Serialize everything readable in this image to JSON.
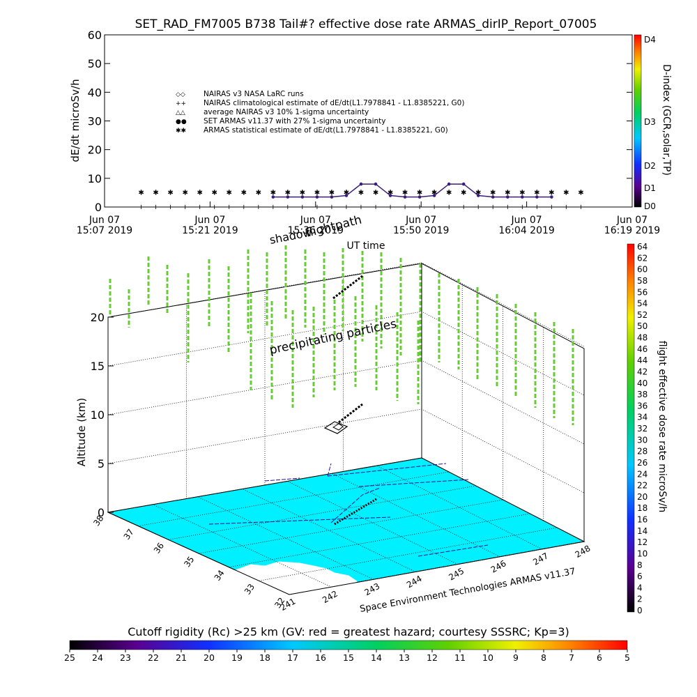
{
  "title": "SET_RAD_FM7005  B738 Tail#? effective dose rate ARMAS_dirIP_Report_07005",
  "colors": {
    "nairas_line": "#3a1e78",
    "armas": "#0a2fe0",
    "surface": "#00f0ff",
    "precip": "#66cc33",
    "coast": "#ffffff"
  },
  "top_panel": {
    "ylabel": "dE/dt microSv/h",
    "xlabel": "UT time",
    "y_ticks": [
      "0",
      "10",
      "20",
      "30",
      "40",
      "50",
      "60"
    ],
    "x_ticks": [
      {
        "l1": "Jun 07",
        "l2": "15:07 2019"
      },
      {
        "l1": "Jun 07",
        "l2": "15:21 2019"
      },
      {
        "l1": "Jun 07",
        "l2": "15:36 2019"
      },
      {
        "l1": "Jun 07",
        "l2": "15:50 2019"
      },
      {
        "l1": "Jun 07",
        "l2": "16:04 2019"
      },
      {
        "l1": "Jun 07",
        "l2": "16:19 2019"
      }
    ],
    "legend": [
      {
        "sym": "◇◇",
        "text": "NAIRAS v3 NASA LaRC runs"
      },
      {
        "sym": "++",
        "text": "NAIRAS climatological estimate of dE/dt(L1.7978841 - L1.8385221, G0)"
      },
      {
        "sym": "△△",
        "text": "average NAIRAS v3 10% 1-sigma uncertainty"
      },
      {
        "sym": "●●",
        "text": "SET ARMAS v11.37 with 27% 1-sigma uncertainty"
      },
      {
        "sym": "✱✱",
        "text": "ARMAS statistical estimate of dE/dt(L1.7978841 - L1.8385221, G0)"
      }
    ]
  },
  "dindex": {
    "label": "D-index (GCR,solar,TP)",
    "ticks": [
      "D0",
      "D1",
      "D2",
      "D3",
      "D4"
    ]
  },
  "chart_data": [
    {
      "type": "line",
      "title": "SET_RAD_FM7005  B738 Tail#? effective dose rate ARMAS_dirIP_Report_07005",
      "xlabel": "UT time",
      "ylabel": "dE/dt microSv/h",
      "xlim": [
        "15:07",
        "16:19"
      ],
      "ylim": [
        0,
        60
      ],
      "grid": false,
      "legend_position": "upper-left",
      "x": [
        "15:12",
        "15:14",
        "15:16",
        "15:18",
        "15:20",
        "15:22",
        "15:24",
        "15:26",
        "15:28",
        "15:30",
        "15:32",
        "15:34",
        "15:36",
        "15:38",
        "15:40",
        "15:42",
        "15:44",
        "15:46",
        "15:48",
        "15:50",
        "15:52",
        "15:54",
        "15:56",
        "15:58",
        "16:00",
        "16:02",
        "16:04",
        "16:06",
        "16:08",
        "16:10",
        "16:12"
      ],
      "series": [
        {
          "name": "NAIRAS climatological estimate of dE/dt(L1.7978841 - L1.8385221, G0)",
          "values": [
            0,
            0,
            0,
            0,
            0,
            0,
            0,
            0,
            0,
            0,
            0,
            0,
            0,
            0,
            0,
            0,
            0,
            0,
            0,
            0,
            0,
            0,
            0,
            0,
            0,
            0,
            0,
            0,
            0,
            0,
            0
          ]
        },
        {
          "name": "ARMAS statistical estimate of dE/dt(L1.7978841 - L1.8385221, G0)",
          "values": [
            5,
            5,
            5,
            5,
            5,
            5,
            5,
            5,
            5,
            5,
            5,
            5,
            5,
            5,
            5,
            5,
            5,
            5,
            5,
            5,
            5,
            5,
            5,
            5,
            5,
            5,
            5,
            5,
            5,
            5,
            5
          ]
        },
        {
          "name": "SET ARMAS v11.37 with 27% 1-sigma uncertainty",
          "values": [
            null,
            null,
            null,
            null,
            null,
            null,
            null,
            null,
            null,
            3.5,
            3.5,
            3.5,
            3.5,
            3.5,
            4,
            8,
            8,
            4,
            3.5,
            3.5,
            4,
            8,
            8,
            4,
            3.5,
            3.5,
            3.5,
            3.5,
            3.5,
            null,
            null
          ]
        }
      ]
    },
    {
      "type": "scatter",
      "title": "",
      "xlabel": "",
      "ylabel": "Altitude (km)",
      "zlim": [
        0,
        20
      ],
      "z_ticks": [
        0,
        5,
        10,
        15,
        20
      ],
      "lat_ticks": [
        32,
        33,
        34,
        35,
        36,
        37,
        38
      ],
      "lon_ticks": [
        241,
        242,
        243,
        244,
        245,
        246,
        247,
        248
      ],
      "series": [
        {
          "name": "precipitating particles",
          "values": []
        },
        {
          "name": "flightpath",
          "values": []
        }
      ]
    }
  ],
  "bottom_panel": {
    "annotations": {
      "shadow": "shadow",
      "flightpath": "flightpath",
      "precip": "precipitating particles"
    },
    "alt_label": "Altitude (km)",
    "alt_ticks": [
      "0",
      "5",
      "10",
      "15",
      "20"
    ],
    "lat_ticks": [
      "32",
      "33",
      "34",
      "35",
      "36",
      "37",
      "38"
    ],
    "lon_ticks": [
      "241",
      "242",
      "243",
      "244",
      "245",
      "246",
      "247",
      "248"
    ],
    "credit": "Space Environment Technologies ARMAS v11.37"
  },
  "right_colorbar": {
    "label": "flight effective dose rate microSv/h",
    "ticks": [
      "0",
      "2",
      "4",
      "6",
      "8",
      "10",
      "12",
      "14",
      "16",
      "18",
      "20",
      "22",
      "24",
      "26",
      "28",
      "30",
      "32",
      "34",
      "36",
      "38",
      "40",
      "42",
      "44",
      "46",
      "48",
      "50",
      "52",
      "54",
      "56",
      "58",
      "60",
      "62",
      "64"
    ]
  },
  "bottom_colorbar": {
    "title": "Cutoff rigidity (Rc) >25 km (GV: red = greatest hazard; courtesy SSSRC; Kp=3)",
    "ticks": [
      "25",
      "24",
      "23",
      "22",
      "21",
      "20",
      "19",
      "18",
      "17",
      "16",
      "15",
      "14",
      "13",
      "12",
      "11",
      "10",
      "9",
      "8",
      "7",
      "6",
      "5"
    ]
  }
}
